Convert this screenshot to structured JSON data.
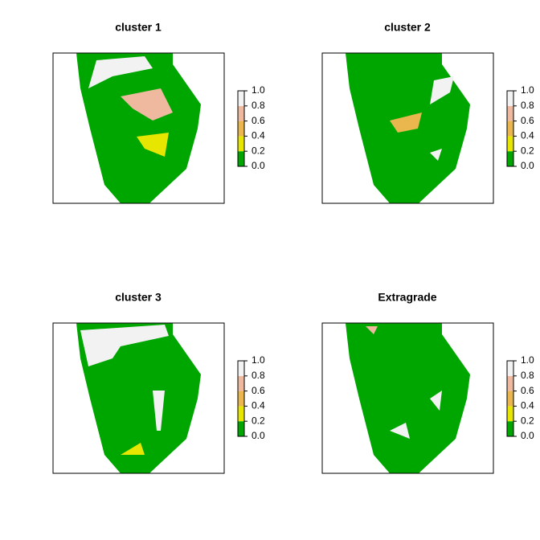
{
  "panels": [
    {
      "title": "cluster 1"
    },
    {
      "title": "cluster 2"
    },
    {
      "title": "cluster 3"
    },
    {
      "title": "Extragrade"
    }
  ],
  "legend": {
    "breaks": [
      {
        "value": 0,
        "label": "0.0"
      },
      {
        "value": 0.2,
        "label": "0.2"
      },
      {
        "value": 0.4,
        "label": "0.4"
      },
      {
        "value": 0.6,
        "label": "0.6"
      },
      {
        "value": 0.8,
        "label": "0.8"
      },
      {
        "value": 1,
        "label": "1.0"
      }
    ],
    "colors": [
      "#00A600",
      "#E6E600",
      "#EAB64E",
      "#EEB99F",
      "#F2F2F2"
    ]
  }
}
